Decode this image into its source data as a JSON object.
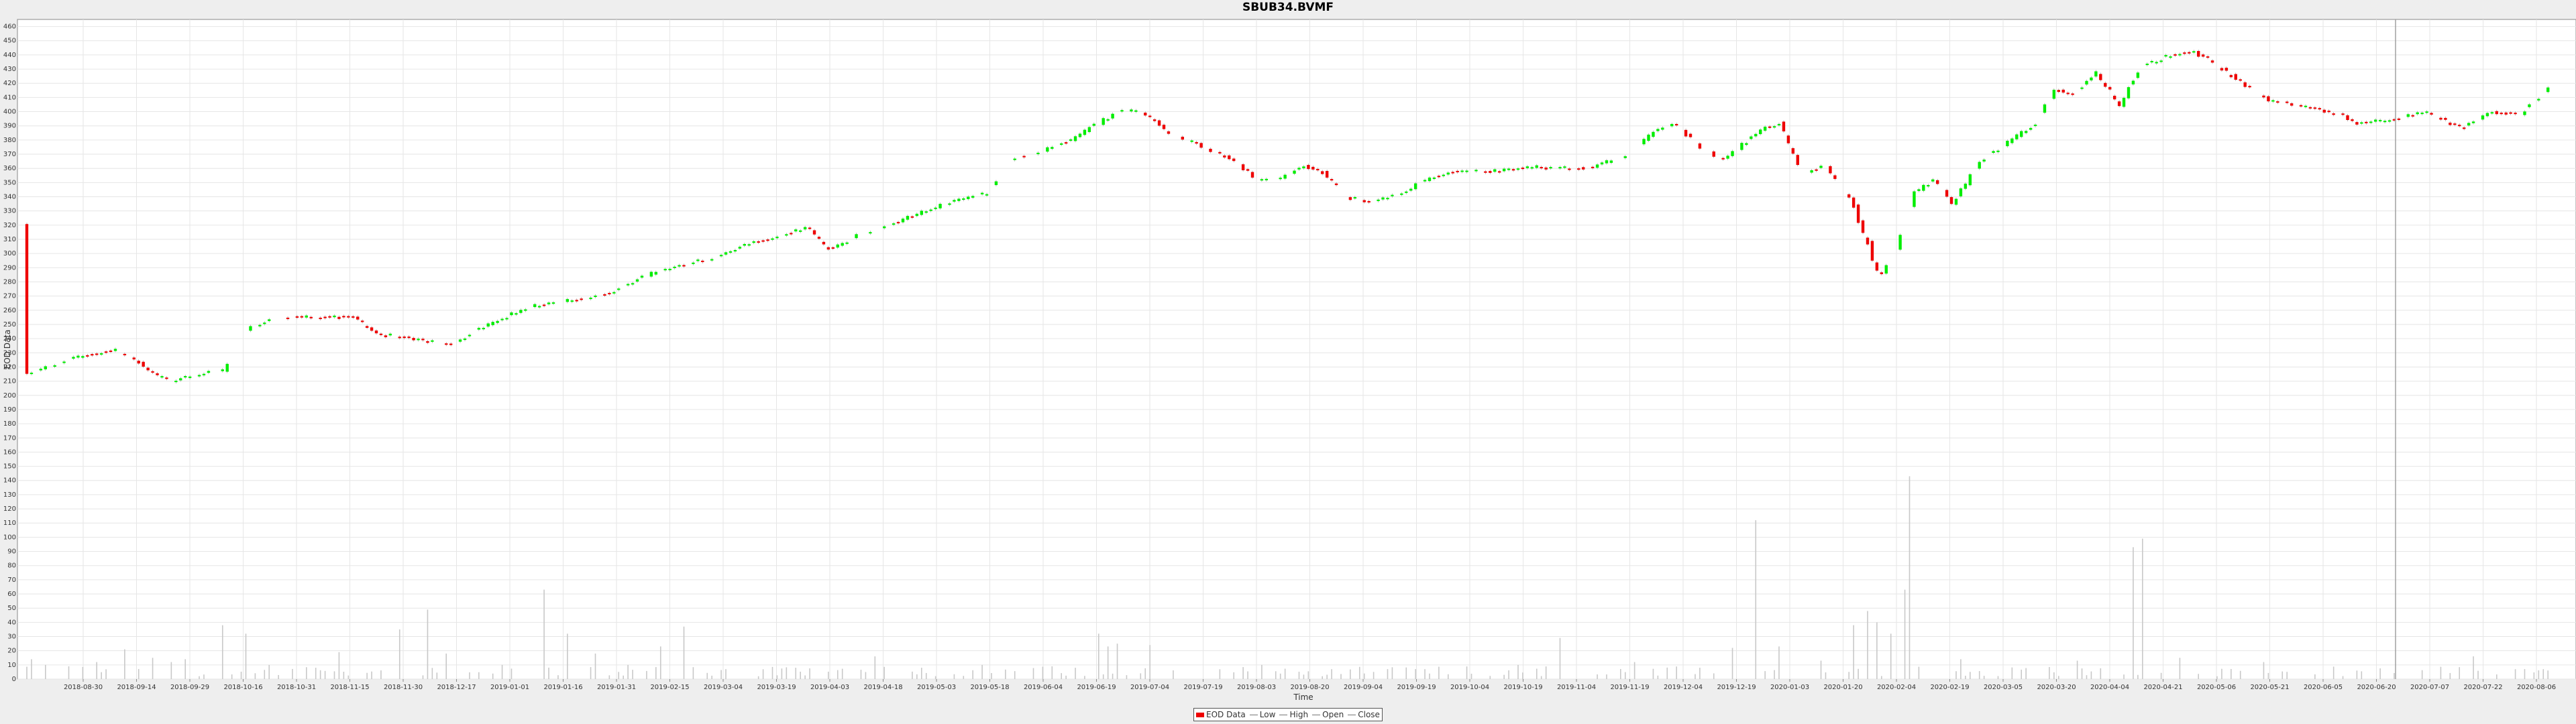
{
  "chart_data": {
    "type": "candlestick",
    "title": "SBUB34.BVMF",
    "xlabel": "Time",
    "ylabel": "EOD Data",
    "ylim": [
      0,
      465
    ],
    "yticks": [
      0,
      10,
      20,
      30,
      40,
      50,
      60,
      70,
      80,
      90,
      100,
      110,
      120,
      130,
      140,
      150,
      160,
      170,
      180,
      190,
      200,
      210,
      220,
      230,
      240,
      250,
      260,
      270,
      280,
      290,
      300,
      310,
      320,
      330,
      340,
      350,
      360,
      370,
      380,
      390,
      400,
      410,
      420,
      430,
      440,
      450,
      460
    ],
    "xticks": [
      "2018-08-30",
      "2018-09-14",
      "2018-09-29",
      "2018-10-16",
      "2018-10-31",
      "2018-11-15",
      "2018-11-30",
      "2018-12-17",
      "2019-01-01",
      "2019-01-16",
      "2019-01-31",
      "2019-02-15",
      "2019-03-04",
      "2019-03-19",
      "2019-04-03",
      "2019-04-18",
      "2019-05-03",
      "2019-05-18",
      "2019-06-04",
      "2019-06-19",
      "2019-07-04",
      "2019-07-19",
      "2019-08-03",
      "2019-08-20",
      "2019-09-04",
      "2019-09-19",
      "2019-10-04",
      "2019-10-19",
      "2019-11-04",
      "2019-11-19",
      "2019-12-04",
      "2019-12-19",
      "2020-01-03",
      "2020-01-20",
      "2020-02-04",
      "2020-02-19",
      "2020-03-05",
      "2020-03-20",
      "2020-04-04",
      "2020-04-21",
      "2020-05-06",
      "2020-05-21",
      "2020-06-05",
      "2020-06-20",
      "2020-07-07",
      "2020-07-22",
      "2020-08-06"
    ],
    "legend": [
      "EOD Data",
      "Low",
      "High",
      "Open",
      "Close"
    ],
    "legend_position": "bottom",
    "grid": true,
    "colors": {
      "up": "#00ee00",
      "down": "#ee0000",
      "volume": "#c8c8c8",
      "grid": "#e6e6e6",
      "crosshair": "#a0a0a0"
    },
    "crosshair_x_index": 470,
    "close_anchors": [
      [
        0,
        215
      ],
      [
        12,
        222
      ],
      [
        25,
        228
      ],
      [
        38,
        232
      ],
      [
        48,
        223
      ],
      [
        55,
        214
      ],
      [
        62,
        210
      ],
      [
        70,
        213
      ],
      [
        78,
        216
      ],
      [
        85,
        218
      ],
      [
        90,
        243
      ],
      [
        105,
        255
      ],
      [
        120,
        255
      ],
      [
        140,
        255
      ],
      [
        150,
        243
      ],
      [
        162,
        241
      ],
      [
        172,
        238
      ],
      [
        182,
        236
      ],
      [
        198,
        250
      ],
      [
        215,
        262
      ],
      [
        225,
        265
      ],
      [
        238,
        268
      ],
      [
        250,
        272
      ],
      [
        262,
        282
      ],
      [
        272,
        288
      ],
      [
        282,
        292
      ],
      [
        292,
        296
      ],
      [
        302,
        302
      ],
      [
        312,
        308
      ],
      [
        322,
        312
      ],
      [
        335,
        318
      ],
      [
        345,
        302
      ],
      [
        355,
        312
      ],
      [
        370,
        320
      ],
      [
        385,
        330
      ],
      [
        400,
        338
      ],
      [
        412,
        342
      ],
      [
        422,
        366
      ],
      [
        435,
        372
      ],
      [
        448,
        380
      ],
      [
        460,
        392
      ],
      [
        468,
        400
      ],
      [
        478,
        401
      ],
      [
        490,
        385
      ],
      [
        505,
        375
      ],
      [
        515,
        368
      ],
      [
        528,
        352
      ],
      [
        538,
        353
      ],
      [
        548,
        362
      ],
      [
        556,
        357
      ],
      [
        566,
        340
      ],
      [
        576,
        336
      ],
      [
        590,
        343
      ],
      [
        602,
        353
      ],
      [
        612,
        358
      ],
      [
        630,
        358
      ],
      [
        648,
        361
      ],
      [
        660,
        360
      ],
      [
        672,
        361
      ],
      [
        685,
        368
      ],
      [
        697,
        384
      ],
      [
        707,
        392
      ],
      [
        717,
        376
      ],
      [
        727,
        366
      ],
      [
        737,
        378
      ],
      [
        745,
        388
      ],
      [
        752,
        392
      ],
      [
        762,
        356
      ],
      [
        772,
        362
      ],
      [
        782,
        340
      ],
      [
        790,
        305
      ],
      [
        795,
        282
      ],
      [
        802,
        305
      ],
      [
        810,
        343
      ],
      [
        818,
        352
      ],
      [
        826,
        335
      ],
      [
        838,
        365
      ],
      [
        850,
        378
      ],
      [
        862,
        392
      ],
      [
        870,
        416
      ],
      [
        878,
        412
      ],
      [
        888,
        428
      ],
      [
        898,
        405
      ],
      [
        908,
        432
      ],
      [
        920,
        440
      ],
      [
        930,
        442
      ],
      [
        940,
        433
      ],
      [
        952,
        418
      ],
      [
        962,
        408
      ],
      [
        972,
        405
      ],
      [
        982,
        402
      ],
      [
        992,
        398
      ],
      [
        1000,
        392
      ],
      [
        1015,
        394
      ],
      [
        1030,
        400
      ],
      [
        1045,
        388
      ],
      [
        1058,
        400
      ],
      [
        1070,
        398
      ],
      [
        1085,
        420
      ]
    ],
    "volume_spikes": [
      [
        2,
        14
      ],
      [
        8,
        10
      ],
      [
        18,
        9
      ],
      [
        30,
        12
      ],
      [
        42,
        21
      ],
      [
        55,
        15
      ],
      [
        62,
        12
      ],
      [
        68,
        14
      ],
      [
        85,
        38
      ],
      [
        95,
        32
      ],
      [
        105,
        10
      ],
      [
        125,
        8
      ],
      [
        135,
        19
      ],
      [
        160,
        35
      ],
      [
        172,
        49
      ],
      [
        180,
        18
      ],
      [
        205,
        10
      ],
      [
        222,
        63
      ],
      [
        232,
        32
      ],
      [
        245,
        18
      ],
      [
        258,
        10
      ],
      [
        272,
        23
      ],
      [
        282,
        37
      ],
      [
        300,
        7
      ],
      [
        330,
        8
      ],
      [
        365,
        16
      ],
      [
        385,
        8
      ],
      [
        410,
        10
      ],
      [
        440,
        9
      ],
      [
        460,
        32
      ],
      [
        465,
        23
      ],
      [
        468,
        25
      ],
      [
        482,
        24
      ],
      [
        530,
        10
      ],
      [
        560,
        7
      ],
      [
        600,
        7
      ],
      [
        640,
        10
      ],
      [
        658,
        29
      ],
      [
        690,
        12
      ],
      [
        718,
        8
      ],
      [
        732,
        22
      ],
      [
        742,
        112
      ],
      [
        752,
        23
      ],
      [
        770,
        13
      ],
      [
        785,
        38
      ],
      [
        790,
        48
      ],
      [
        795,
        40
      ],
      [
        800,
        32
      ],
      [
        806,
        63
      ],
      [
        808,
        143
      ],
      [
        830,
        14
      ],
      [
        880,
        13
      ],
      [
        905,
        93
      ],
      [
        908,
        99
      ],
      [
        925,
        15
      ],
      [
        960,
        12
      ],
      [
        1000,
        6
      ],
      [
        1050,
        16
      ],
      [
        1080,
        7
      ]
    ]
  }
}
